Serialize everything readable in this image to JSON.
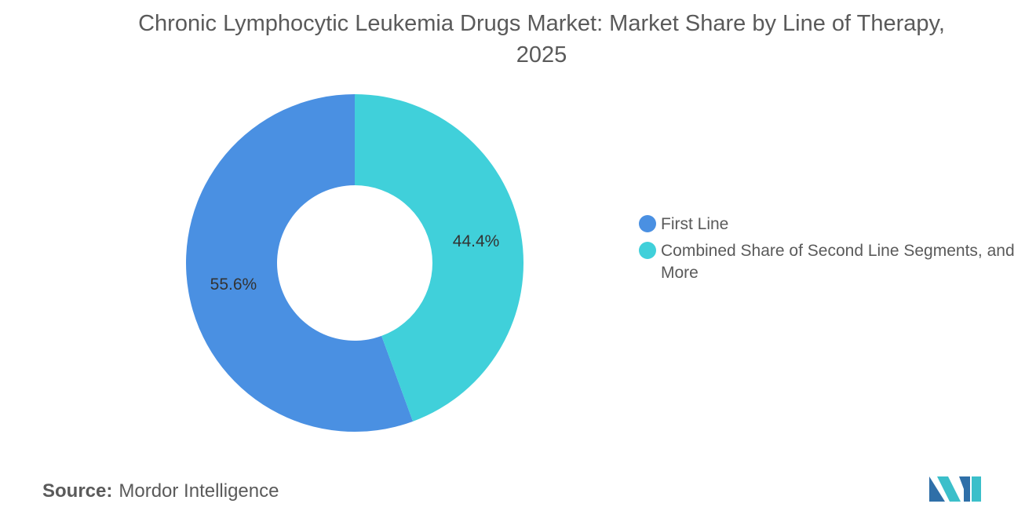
{
  "chart_data": {
    "type": "pie",
    "variant": "donut",
    "title": "Chronic Lymphocytic Leukemia Drugs Market: Market Share by Line of Therapy, 2025",
    "categories": [
      "First Line",
      "Combined Share of Second Line Segments, and More"
    ],
    "values": [
      55.6,
      44.4
    ],
    "value_labels": [
      "55.6%",
      "44.4%"
    ],
    "colors": [
      "#4a90e2",
      "#40d0da"
    ],
    "legend_position": "right"
  },
  "source": {
    "label": "Source:",
    "value": "Mordor Intelligence"
  },
  "logo": {
    "icon": "mordor-intelligence-logo-icon",
    "colors": [
      "#2f6fa8",
      "#3bbfca"
    ]
  }
}
